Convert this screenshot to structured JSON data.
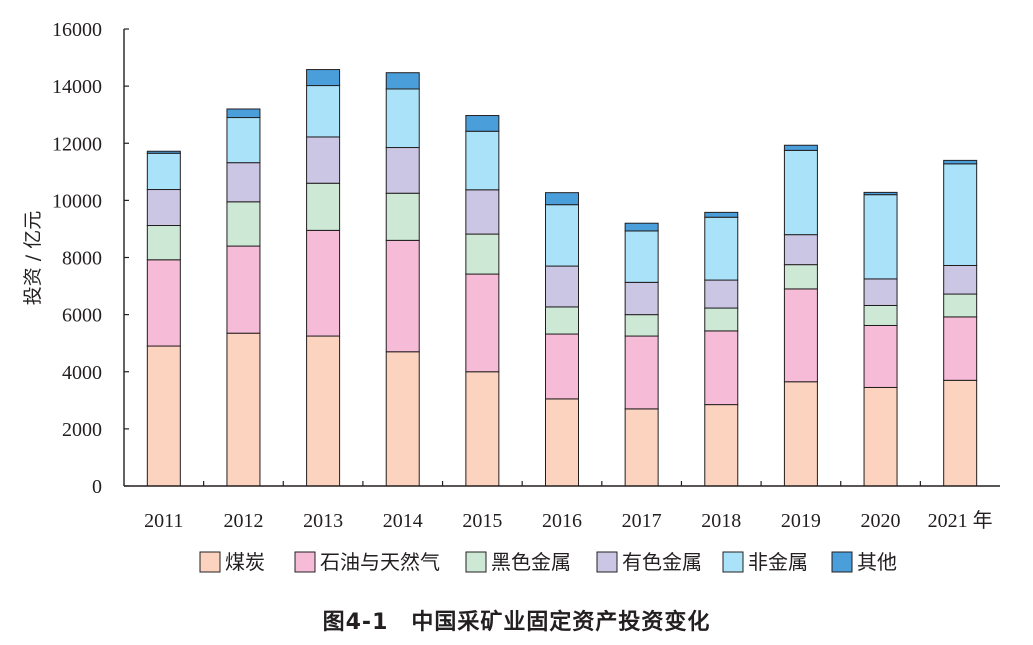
{
  "caption": "图4-1　中国采矿业固定资产投资变化",
  "chart_data": {
    "type": "bar",
    "stacked": true,
    "title": "",
    "xlabel": "",
    "ylabel": "投资 / 亿元",
    "ylim": [
      0,
      16000
    ],
    "yticks": [
      0,
      2000,
      4000,
      6000,
      8000,
      10000,
      12000,
      14000,
      16000
    ],
    "categories": [
      "2011",
      "2012",
      "2013",
      "2014",
      "2015",
      "2016",
      "2017",
      "2018",
      "2019",
      "2020",
      "2021 年"
    ],
    "legend_position": "bottom",
    "grid": false,
    "series": [
      {
        "name": "煤炭",
        "color": "#fbd3be",
        "values": [
          4900,
          5350,
          5250,
          4700,
          4000,
          3050,
          2700,
          2850,
          3650,
          3450,
          3700
        ]
      },
      {
        "name": "石油与天然气",
        "color": "#f6bbd6",
        "values": [
          3020,
          3050,
          3700,
          3900,
          3420,
          2270,
          2550,
          2580,
          3250,
          2170,
          2220
        ]
      },
      {
        "name": "黑色金属",
        "color": "#cde8d5",
        "values": [
          1200,
          1550,
          1650,
          1650,
          1400,
          950,
          750,
          800,
          850,
          700,
          800
        ]
      },
      {
        "name": "有色金属",
        "color": "#cbc6e4",
        "values": [
          1260,
          1370,
          1620,
          1600,
          1550,
          1430,
          1130,
          980,
          1050,
          930,
          1000
        ]
      },
      {
        "name": "非金属",
        "color": "#a9e2f9",
        "values": [
          1270,
          1580,
          1800,
          2050,
          2050,
          2150,
          1800,
          2200,
          2950,
          2950,
          3560
        ]
      },
      {
        "name": "其他",
        "color": "#4a9ed9",
        "values": [
          70,
          300,
          560,
          570,
          550,
          420,
          270,
          170,
          180,
          80,
          120
        ]
      }
    ]
  }
}
